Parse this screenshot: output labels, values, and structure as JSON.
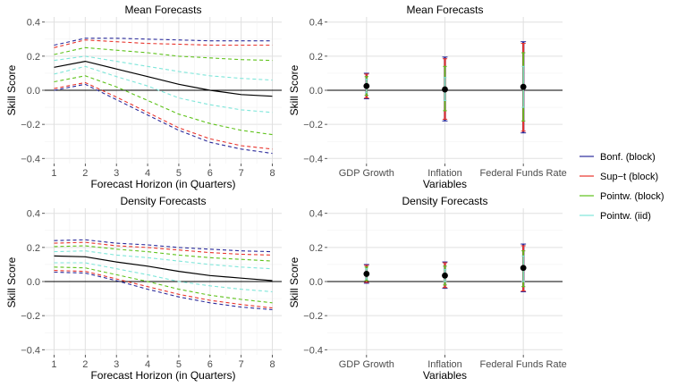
{
  "chart_data": [
    {
      "id": "p1",
      "type": "line",
      "title": "Mean Forecasts",
      "xlabel": "Forecast Horizon (in Quarters)",
      "ylabel": "Skill Score",
      "x": [
        1,
        2,
        3,
        4,
        5,
        6,
        7,
        8
      ],
      "xticks": [
        "1",
        "2",
        "3",
        "4",
        "5",
        "6",
        "7",
        "8"
      ],
      "xlim": [
        0.7,
        8.3
      ],
      "ylim": [
        -0.43,
        0.43
      ],
      "yticks": [
        -0.4,
        -0.2,
        0.0,
        0.2,
        0.4
      ],
      "yticklabels": [
        "−0.4",
        "−0.2",
        "0.0",
        "0.2",
        "0.4"
      ],
      "grid": true,
      "hline": 0,
      "point_estimate": [
        0.135,
        0.17,
        0.125,
        0.08,
        0.035,
        0.0,
        -0.025,
        -0.035
      ],
      "bands": [
        {
          "method": "Pointw. (iid)",
          "upper": [
            0.175,
            0.2,
            0.17,
            0.14,
            0.11,
            0.085,
            0.07,
            0.06
          ],
          "lower": [
            0.095,
            0.14,
            0.08,
            0.025,
            -0.045,
            -0.085,
            -0.115,
            -0.13
          ]
        },
        {
          "method": "Pointw. (block)",
          "upper": [
            0.21,
            0.25,
            0.235,
            0.22,
            0.2,
            0.19,
            0.18,
            0.175
          ],
          "lower": [
            0.05,
            0.085,
            0.02,
            -0.06,
            -0.14,
            -0.195,
            -0.235,
            -0.26
          ]
        },
        {
          "method": "Sup-t (block)",
          "upper": [
            0.25,
            0.295,
            0.285,
            0.275,
            0.27,
            0.265,
            0.265,
            0.265
          ],
          "lower": [
            0.01,
            0.045,
            -0.04,
            -0.13,
            -0.22,
            -0.285,
            -0.325,
            -0.345
          ]
        },
        {
          "method": "Bonf. (block)",
          "upper": [
            0.265,
            0.305,
            0.305,
            0.3,
            0.295,
            0.29,
            0.29,
            0.29
          ],
          "lower": [
            0.0,
            0.035,
            -0.055,
            -0.145,
            -0.235,
            -0.305,
            -0.345,
            -0.37
          ]
        }
      ]
    },
    {
      "id": "p2",
      "type": "scatter",
      "title": "Mean Forecasts",
      "xlabel": "Variables",
      "ylabel": "Skill Score",
      "categories": [
        "GDP Growth",
        "Inflation",
        "Federal Funds Rate"
      ],
      "ylim": [
        -0.43,
        0.43
      ],
      "yticks": [
        -0.4,
        -0.2,
        0.0,
        0.2,
        0.4
      ],
      "yticklabels": [
        "−0.4",
        "−0.2",
        "0.0",
        "0.2",
        "0.4"
      ],
      "grid": true,
      "hline": 0,
      "point_estimate": [
        0.025,
        0.005,
        0.02
      ],
      "intervals": [
        {
          "method": "Bonf. (block)",
          "lower": [
            -0.05,
            -0.18,
            -0.25
          ],
          "upper": [
            0.1,
            0.195,
            0.285
          ]
        },
        {
          "method": "Sup-t (block)",
          "lower": [
            -0.045,
            -0.17,
            -0.24
          ],
          "upper": [
            0.095,
            0.185,
            0.275
          ]
        },
        {
          "method": "Pointw. (block)",
          "lower": [
            -0.03,
            -0.12,
            -0.18
          ],
          "upper": [
            0.08,
            0.14,
            0.22
          ]
        },
        {
          "method": "Pointw. (iid)",
          "lower": [
            -0.015,
            -0.06,
            -0.1
          ],
          "upper": [
            0.065,
            0.075,
            0.14
          ]
        }
      ]
    },
    {
      "id": "p3",
      "type": "line",
      "title": "Density Forecasts",
      "xlabel": "Forecast Horizon (in Quarters)",
      "ylabel": "Skill Score",
      "x": [
        1,
        2,
        3,
        4,
        5,
        6,
        7,
        8
      ],
      "xticks": [
        "1",
        "2",
        "3",
        "4",
        "5",
        "6",
        "7",
        "8"
      ],
      "xlim": [
        0.7,
        8.3
      ],
      "ylim": [
        -0.43,
        0.43
      ],
      "yticks": [
        -0.4,
        -0.2,
        0.0,
        0.2,
        0.4
      ],
      "yticklabels": [
        "−0.4",
        "−0.2",
        "0.0",
        "0.2",
        "0.4"
      ],
      "grid": true,
      "hline": 0,
      "point_estimate": [
        0.15,
        0.145,
        0.115,
        0.09,
        0.06,
        0.035,
        0.02,
        0.005
      ],
      "bands": [
        {
          "method": "Pointw. (iid)",
          "upper": [
            0.175,
            0.18,
            0.155,
            0.14,
            0.12,
            0.1,
            0.085,
            0.075
          ],
          "lower": [
            0.11,
            0.11,
            0.075,
            0.04,
            0.0,
            -0.025,
            -0.045,
            -0.06
          ]
        },
        {
          "method": "Pointw. (block)",
          "upper": [
            0.205,
            0.21,
            0.19,
            0.175,
            0.155,
            0.14,
            0.13,
            0.12
          ],
          "lower": [
            0.085,
            0.08,
            0.04,
            0.0,
            -0.045,
            -0.08,
            -0.105,
            -0.125
          ]
        },
        {
          "method": "Sup-t (block)",
          "upper": [
            0.225,
            0.23,
            0.21,
            0.2,
            0.185,
            0.17,
            0.16,
            0.155
          ],
          "lower": [
            0.065,
            0.06,
            0.015,
            -0.03,
            -0.075,
            -0.11,
            -0.135,
            -0.155
          ]
        },
        {
          "method": "Bonf. (block)",
          "upper": [
            0.24,
            0.245,
            0.225,
            0.215,
            0.2,
            0.19,
            0.18,
            0.175
          ],
          "lower": [
            0.055,
            0.05,
            0.005,
            -0.045,
            -0.09,
            -0.125,
            -0.15,
            -0.165
          ]
        }
      ]
    },
    {
      "id": "p4",
      "type": "scatter",
      "title": "Density Forecasts",
      "xlabel": "Variables",
      "ylabel": "Skill Score",
      "categories": [
        "GDP Growth",
        "Inflation",
        "Federal Funds Rate"
      ],
      "ylim": [
        -0.43,
        0.43
      ],
      "yticks": [
        -0.4,
        -0.2,
        0.0,
        0.2,
        0.4
      ],
      "yticklabels": [
        "−0.4",
        "−0.2",
        "0.0",
        "0.2",
        "0.4"
      ],
      "grid": true,
      "hline": 0,
      "point_estimate": [
        0.045,
        0.035,
        0.08
      ],
      "intervals": [
        {
          "method": "Bonf. (block)",
          "lower": [
            -0.01,
            -0.04,
            -0.06
          ],
          "upper": [
            0.1,
            0.115,
            0.22
          ]
        },
        {
          "method": "Sup-t (block)",
          "lower": [
            -0.005,
            -0.035,
            -0.055
          ],
          "upper": [
            0.095,
            0.11,
            0.21
          ]
        },
        {
          "method": "Pointw. (block)",
          "lower": [
            0.005,
            -0.02,
            -0.03
          ],
          "upper": [
            0.085,
            0.09,
            0.18
          ]
        },
        {
          "method": "Pointw. (iid)",
          "lower": [
            0.015,
            0.0,
            0.0
          ],
          "upper": [
            0.075,
            0.07,
            0.15
          ]
        }
      ]
    }
  ],
  "legend": {
    "placement": "right",
    "items": [
      {
        "label": "Bonf. (block)",
        "color": "#2b2b9b"
      },
      {
        "label": "Sup−t (block)",
        "color": "#e8342c"
      },
      {
        "label": "Pointw. (block)",
        "color": "#5ec21a"
      },
      {
        "label": "Pointw. (iid)",
        "color": "#7fe6da"
      }
    ]
  },
  "colors": {
    "Bonf. (block)": "#2b2b9b",
    "Sup-t (block)": "#e8342c",
    "Pointw. (block)": "#5ec21a",
    "Pointw. (iid)": "#7fe6da",
    "point_estimate": "#000000"
  }
}
